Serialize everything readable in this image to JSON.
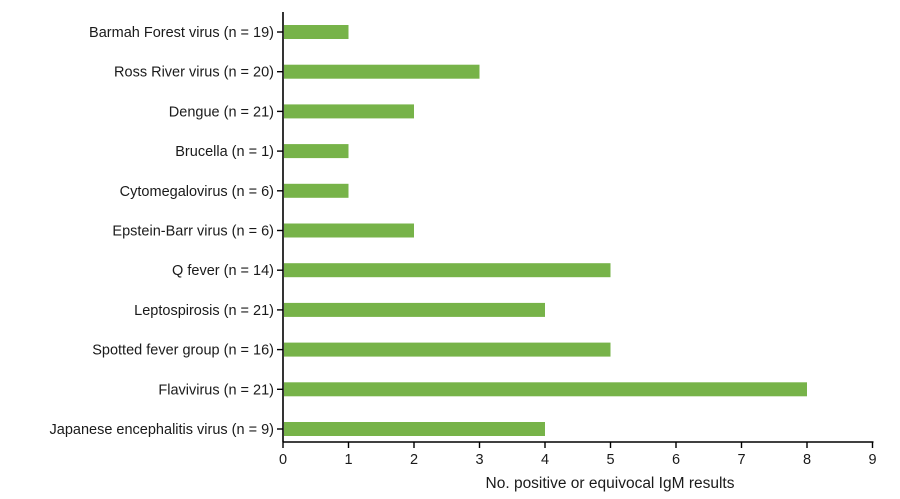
{
  "chart_data": {
    "type": "bar",
    "orientation": "horizontal",
    "categories": [
      "Barmah Forest virus (n = 19)",
      "Ross River virus (n = 20)",
      "Dengue (n = 21)",
      "Brucella (n = 1)",
      "Cytomegalovirus (n = 6)",
      "Epstein-Barr virus (n = 6)",
      "Q fever (n = 14)",
      "Leptospirosis (n = 21)",
      "Spotted fever group  (n = 16)",
      "Flavivirus (n = 21)",
      "Japanese encephalitis virus (n = 9)"
    ],
    "values": [
      1,
      3,
      2,
      1,
      1,
      2,
      5,
      4,
      5,
      8,
      4
    ],
    "xlabel": "No. positive or equivocal IgM results",
    "ylabel": "",
    "xlim": [
      0,
      9
    ],
    "xticks": [
      "0",
      "1",
      "2",
      "3",
      "4",
      "5",
      "6",
      "7",
      "8",
      "9"
    ],
    "grid": false,
    "bar_color": "#77b349"
  }
}
